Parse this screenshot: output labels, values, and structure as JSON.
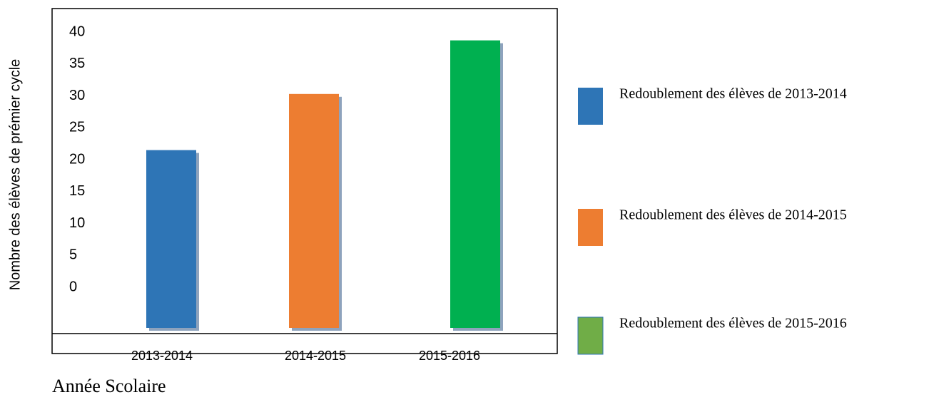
{
  "chart_data": {
    "type": "bar",
    "y_label": "Nombre des élèves de prémier cycle",
    "x_label": "Année Scolaire",
    "categories": [
      "2013-2014",
      "2014-2015",
      "2015-2016"
    ],
    "values": [
      21.5,
      30.3,
      38.7
    ],
    "colors": [
      "#2e75b6",
      "#ed7d31",
      "#00b050"
    ],
    "ylim": [
      0,
      40
    ],
    "yticks": [
      0,
      5,
      10,
      15,
      20,
      25,
      30,
      35,
      40
    ],
    "legend": [
      {
        "label": "Redoublement des élèves de 2013-2014",
        "color": "#2e75b6"
      },
      {
        "label": "Redoublement des élèves de 2014-2015",
        "color": "#ed7d31"
      },
      {
        "label": "Redoublement des élèves de 2015-2016",
        "color": "#70ad47"
      }
    ]
  }
}
